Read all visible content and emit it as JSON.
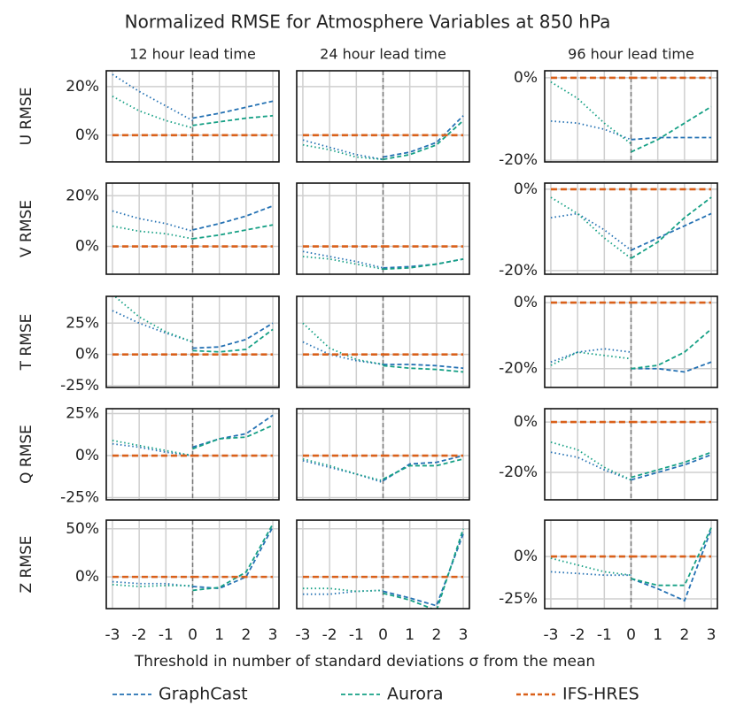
{
  "title": "Normalized RMSE for Atmosphere Variables at 850 hPa",
  "xlabel": "Threshold in number of standard deviations σ from the mean",
  "series": [
    {
      "name": "GraphCast",
      "color": "#2471b3"
    },
    {
      "name": "Aurora",
      "color": "#16a085"
    },
    {
      "name": "IFS-HRES",
      "color": "#d9601a"
    }
  ],
  "chart_data": [
    {
      "type": "line",
      "title": "12 hour lead time",
      "ylabel": "U RMSE",
      "x": [
        -3,
        -2,
        -1,
        0,
        0,
        1,
        2,
        3
      ],
      "xlim": [
        -3.23,
        3.23
      ],
      "xticks": [
        -3,
        -2,
        -1,
        0,
        1,
        2,
        3
      ],
      "ylim": [
        -11,
        26.5
      ],
      "yticks": [
        {
          "value": 0,
          "label": "0%"
        },
        {
          "value": 20,
          "label": "20%"
        }
      ],
      "grid": true,
      "values": [
        [
          25,
          18,
          12,
          6,
          7,
          9,
          11.5,
          14
        ],
        [
          16,
          10,
          6,
          3,
          4,
          5.5,
          7,
          8
        ],
        [
          0,
          0,
          0,
          0,
          0,
          0,
          0,
          0
        ]
      ]
    },
    {
      "type": "line",
      "title": "24 hour lead time",
      "x": [
        -3,
        -2,
        -1,
        0,
        0,
        1,
        2,
        3
      ],
      "xlim": [
        -3.23,
        3.23
      ],
      "xticks": [
        -3,
        -2,
        -1,
        0,
        1,
        2,
        3
      ],
      "ylim": [
        -11,
        26.5
      ],
      "yticks": [
        0,
        20
      ],
      "grid": true,
      "values": [
        [
          -2,
          -5,
          -8,
          -10,
          -9,
          -7,
          -3,
          8
        ],
        [
          -4,
          -6,
          -9,
          -10,
          -10,
          -8,
          -4,
          6
        ],
        [
          0,
          0,
          0,
          0,
          0,
          0,
          0,
          0
        ]
      ]
    },
    {
      "type": "line",
      "title": "96 hour lead time",
      "x": [
        -3,
        -2,
        -1,
        0,
        0,
        1,
        2,
        3
      ],
      "xlim": [
        -3.23,
        3.23
      ],
      "xticks": [
        -3,
        -2,
        -1,
        0,
        1,
        2,
        3
      ],
      "ylim": [
        -20.4,
        1.7
      ],
      "yticks": [
        {
          "value": 0,
          "label": "0%"
        },
        {
          "value": -20,
          "label": "-20%"
        }
      ],
      "grid": true,
      "values": [
        [
          -10.5,
          -11,
          -12.5,
          -15,
          -15,
          -14.5,
          -14.5,
          -14.5
        ],
        [
          -1,
          -5,
          -11,
          -16,
          -18,
          -15,
          -11,
          -7
        ],
        [
          0,
          0,
          0,
          0,
          0,
          0,
          0,
          0
        ]
      ]
    },
    {
      "type": "line",
      "ylabel": "V RMSE",
      "x": [
        -3,
        -2,
        -1,
        0,
        0,
        1,
        2,
        3
      ],
      "xlim": [
        -3.23,
        3.23
      ],
      "xticks": [
        -3,
        -2,
        -1,
        0,
        1,
        2,
        3
      ],
      "ylim": [
        -11,
        25
      ],
      "yticks": [
        {
          "value": 0,
          "label": "0%"
        },
        {
          "value": 20,
          "label": "20%"
        }
      ],
      "grid": true,
      "values": [
        [
          14,
          11,
          9,
          6,
          6.5,
          9,
          12,
          16
        ],
        [
          8,
          6,
          5,
          3,
          3,
          4.5,
          6.5,
          8.5
        ],
        [
          0,
          0,
          0,
          0,
          0,
          0,
          0,
          0
        ]
      ]
    },
    {
      "type": "line",
      "x": [
        -3,
        -2,
        -1,
        0,
        0,
        1,
        2,
        3
      ],
      "xlim": [
        -3.23,
        3.23
      ],
      "xticks": [
        -3,
        -2,
        -1,
        0,
        1,
        2,
        3
      ],
      "ylim": [
        -11,
        25
      ],
      "yticks": [
        0,
        20
      ],
      "grid": true,
      "values": [
        [
          -2,
          -4,
          -6,
          -8.5,
          -8.5,
          -8,
          -7,
          -5
        ],
        [
          -4,
          -5,
          -7,
          -9,
          -9,
          -8.5,
          -7,
          -5
        ],
        [
          0,
          0,
          0,
          0,
          0,
          0,
          0,
          0
        ]
      ]
    },
    {
      "type": "line",
      "x": [
        -3,
        -2,
        -1,
        0,
        0,
        1,
        2,
        3
      ],
      "xlim": [
        -3.23,
        3.23
      ],
      "xticks": [
        -3,
        -2,
        -1,
        0,
        1,
        2,
        3
      ],
      "ylim": [
        -20.9,
        1.5
      ],
      "yticks": [
        {
          "value": 0,
          "label": "0%"
        },
        {
          "value": -20,
          "label": "-20%"
        }
      ],
      "grid": true,
      "values": [
        [
          -7,
          -6,
          -10,
          -15,
          -15,
          -12,
          -9,
          -6
        ],
        [
          -2,
          -6,
          -12,
          -17,
          -17,
          -13,
          -7,
          -2
        ],
        [
          0,
          0,
          0,
          0,
          0,
          0,
          0,
          0
        ]
      ]
    },
    {
      "type": "line",
      "ylabel": "T RMSE",
      "x": [
        -3,
        -2,
        -1,
        0,
        0,
        1,
        2,
        3
      ],
      "xlim": [
        -3.23,
        3.23
      ],
      "xticks": [
        -3,
        -2,
        -1,
        0,
        1,
        2,
        3
      ],
      "ylim": [
        -26.4,
        46.4
      ],
      "yticks": [
        {
          "value": -25,
          "label": "-25%"
        },
        {
          "value": 0,
          "label": "0%"
        },
        {
          "value": 25,
          "label": "25%"
        }
      ],
      "grid": true,
      "values": [
        [
          35,
          25,
          17,
          10,
          5,
          6,
          12,
          25
        ],
        [
          48,
          30,
          18,
          10,
          3,
          2,
          4,
          20
        ],
        [
          0,
          0,
          0,
          0,
          0,
          0,
          0,
          0
        ]
      ]
    },
    {
      "type": "line",
      "x": [
        -3,
        -2,
        -1,
        0,
        0,
        1,
        2,
        3
      ],
      "xlim": [
        -3.23,
        3.23
      ],
      "xticks": [
        -3,
        -2,
        -1,
        0,
        1,
        2,
        3
      ],
      "ylim": [
        -26.4,
        46.4
      ],
      "yticks": [
        -25,
        0,
        25
      ],
      "grid": true,
      "values": [
        [
          10,
          0,
          -5,
          -8,
          -8,
          -8,
          -9,
          -11
        ],
        [
          25,
          5,
          -4,
          -8,
          -9,
          -11,
          -12,
          -14
        ],
        [
          0,
          0,
          0,
          0,
          0,
          0,
          0,
          0
        ]
      ]
    },
    {
      "type": "line",
      "x": [
        -3,
        -2,
        -1,
        0,
        0,
        1,
        2,
        3
      ],
      "xlim": [
        -3.23,
        3.23
      ],
      "xticks": [
        -3,
        -2,
        -1,
        0,
        1,
        2,
        3
      ],
      "ylim": [
        -25.7,
        1.9
      ],
      "yticks": [
        {
          "value": 0,
          "label": "0%"
        },
        {
          "value": -20,
          "label": "-20%"
        }
      ],
      "grid": true,
      "values": [
        [
          -18,
          -15,
          -14,
          -15,
          -20,
          -20,
          -21,
          -18
        ],
        [
          -19,
          -15,
          -16,
          -17,
          -20,
          -19,
          -15,
          -8
        ],
        [
          0,
          0,
          0,
          0,
          0,
          0,
          0,
          0
        ]
      ]
    },
    {
      "type": "line",
      "ylabel": "Q RMSE",
      "x": [
        -3,
        -2,
        -1,
        0,
        0,
        1,
        2,
        3
      ],
      "xlim": [
        -3.23,
        3.23
      ],
      "xticks": [
        -3,
        -2,
        -1,
        0,
        1,
        2,
        3
      ],
      "ylim": [
        -26.3,
        27.9
      ],
      "yticks": [
        {
          "value": -25,
          "label": "-25%"
        },
        {
          "value": 0,
          "label": "0%"
        },
        {
          "value": 25,
          "label": "25%"
        }
      ],
      "grid": true,
      "values": [
        [
          7,
          5,
          2,
          0,
          5,
          10,
          13,
          24
        ],
        [
          9,
          6,
          3,
          0,
          4,
          10,
          11,
          18
        ],
        [
          0,
          0,
          0,
          0,
          0,
          0,
          0,
          0
        ]
      ]
    },
    {
      "type": "line",
      "x": [
        -3,
        -2,
        -1,
        0,
        0,
        1,
        2,
        3
      ],
      "xlim": [
        -3.23,
        3.23
      ],
      "xticks": [
        -3,
        -2,
        -1,
        0,
        1,
        2,
        3
      ],
      "ylim": [
        -26.3,
        27.9
      ],
      "yticks": [
        -25,
        0,
        25
      ],
      "grid": true,
      "values": [
        [
          -3,
          -7,
          -11,
          -16,
          -15,
          -5,
          -4,
          0
        ],
        [
          -2,
          -6,
          -11,
          -15,
          -14,
          -6,
          -6,
          -2
        ],
        [
          0,
          0,
          0,
          0,
          0,
          0,
          0,
          0
        ]
      ]
    },
    {
      "type": "line",
      "x": [
        -3,
        -2,
        -1,
        0,
        0,
        1,
        2,
        3
      ],
      "xlim": [
        -3.23,
        3.23
      ],
      "xticks": [
        -3,
        -2,
        -1,
        0,
        1,
        2,
        3
      ],
      "ylim": [
        -30.9,
        5.3
      ],
      "yticks": [
        {
          "value": 0,
          "label": "0%"
        },
        {
          "value": -20,
          "label": "-20%"
        }
      ],
      "grid": true,
      "values": [
        [
          -12,
          -14,
          -19,
          -23,
          -23,
          -20,
          -17,
          -13
        ],
        [
          -8,
          -11,
          -18,
          -23,
          -22,
          -19,
          -16,
          -12
        ],
        [
          0,
          0,
          0,
          0,
          0,
          0,
          0,
          0
        ]
      ]
    },
    {
      "type": "line",
      "ylabel": "Z RMSE",
      "x": [
        -3,
        -2,
        -1,
        0,
        0,
        1,
        2,
        3
      ],
      "xlim": [
        -3.23,
        3.23
      ],
      "xticks": [
        -3,
        -2,
        -1,
        0,
        1,
        2,
        3
      ],
      "ylim": [
        -33,
        59
      ],
      "yticks": [
        {
          "value": 0,
          "label": "0%"
        },
        {
          "value": 50,
          "label": "50%"
        }
      ],
      "grid": true,
      "values": [
        [
          -5,
          -7,
          -7,
          -10,
          -10,
          -12,
          0,
          52
        ],
        [
          -8,
          -10,
          -9,
          -9,
          -14,
          -11,
          5,
          55
        ],
        [
          0,
          0,
          0,
          0,
          0,
          0,
          0,
          0
        ]
      ]
    },
    {
      "type": "line",
      "x": [
        -3,
        -2,
        -1,
        0,
        0,
        1,
        2,
        3
      ],
      "xlim": [
        -3.23,
        3.23
      ],
      "xticks": [
        -3,
        -2,
        -1,
        0,
        1,
        2,
        3
      ],
      "ylim": [
        -33,
        59
      ],
      "yticks": [
        0,
        50
      ],
      "grid": true,
      "values": [
        [
          -18,
          -18,
          -15,
          -14,
          -15,
          -22,
          -30,
          45
        ],
        [
          -12,
          -12,
          -15,
          -14,
          -17,
          -24,
          -35,
          50
        ],
        [
          0,
          0,
          0,
          0,
          0,
          0,
          0,
          0
        ]
      ]
    },
    {
      "type": "line",
      "x": [
        -3,
        -2,
        -1,
        0,
        0,
        1,
        2,
        3
      ],
      "xlim": [
        -3.23,
        3.23
      ],
      "xticks": [
        -3,
        -2,
        -1,
        0,
        1,
        2,
        3
      ],
      "ylim": [
        -30.7,
        21.4
      ],
      "yticks": [
        {
          "value": -25,
          "label": "-25%"
        },
        {
          "value": 0,
          "label": "0%"
        }
      ],
      "grid": true,
      "values": [
        [
          -9,
          -10,
          -11,
          -11,
          -13,
          -19,
          -26,
          16
        ],
        [
          -1,
          -5,
          -9,
          -11,
          -13,
          -17,
          -17,
          17
        ],
        [
          0,
          0,
          0,
          0,
          0,
          0,
          0,
          0
        ]
      ]
    }
  ]
}
